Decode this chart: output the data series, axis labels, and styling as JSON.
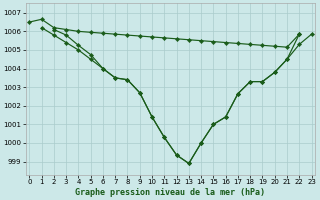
{
  "title": "Graphe pression niveau de la mer (hPa)",
  "bg_color": "#cce8e8",
  "grid_color": "#aacccc",
  "line_color": "#1a5c1a",
  "x_ticks": [
    0,
    1,
    2,
    3,
    4,
    5,
    6,
    7,
    8,
    9,
    10,
    11,
    12,
    13,
    14,
    15,
    16,
    17,
    18,
    19,
    20,
    21,
    22,
    23
  ],
  "y_ticks": [
    999,
    1000,
    1001,
    1002,
    1003,
    1004,
    1005,
    1006,
    1007
  ],
  "ylim": [
    998.3,
    1007.5
  ],
  "xlim": [
    -0.3,
    23.3
  ],
  "s1_x": [
    0,
    1,
    2,
    3,
    4,
    5,
    6,
    7,
    8,
    9,
    10,
    11,
    12,
    13,
    14,
    15,
    16,
    17,
    18,
    19,
    20,
    21,
    22
  ],
  "s1_y": [
    1006.5,
    1006.65,
    1006.2,
    1006.1,
    1006.0,
    1005.95,
    1005.9,
    1005.85,
    1005.8,
    1005.75,
    1005.7,
    1005.65,
    1005.6,
    1005.55,
    1005.5,
    1005.45,
    1005.4,
    1005.35,
    1005.3,
    1005.25,
    1005.2,
    1005.15,
    1005.85
  ],
  "s2_x": [
    1,
    2,
    3,
    4,
    5,
    6,
    7,
    8,
    9,
    10,
    11,
    12,
    13,
    14,
    15,
    16,
    17,
    18,
    19,
    20,
    21,
    22
  ],
  "s2_y": [
    1006.2,
    1005.8,
    1005.4,
    1005.0,
    1004.5,
    1004.0,
    1003.5,
    1003.4,
    1002.7,
    1001.4,
    1000.3,
    999.35,
    998.9,
    1000.0,
    1001.0,
    1001.4,
    1002.65,
    1003.3,
    1003.3,
    1003.8,
    1004.5,
    1005.85
  ],
  "s3_x": [
    2,
    3,
    4,
    5,
    6,
    7,
    8,
    9,
    10,
    11,
    12,
    13,
    14,
    15,
    16,
    17,
    18,
    19,
    20,
    21,
    22,
    23
  ],
  "s3_y": [
    1006.1,
    1005.8,
    1005.25,
    1004.75,
    1004.0,
    1003.5,
    1003.4,
    1002.7,
    1001.4,
    1000.3,
    999.35,
    998.9,
    1000.0,
    1001.0,
    1001.4,
    1002.65,
    1003.3,
    1003.3,
    1003.8,
    1004.5,
    1005.3,
    1005.85
  ]
}
